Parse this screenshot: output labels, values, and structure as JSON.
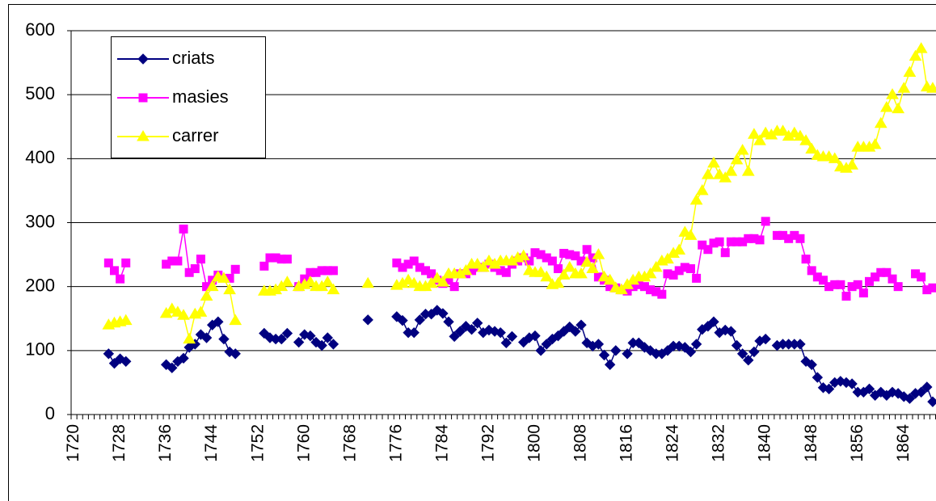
{
  "chart_data": {
    "type": "line",
    "categories": [
      "1720",
      null,
      null,
      null,
      null,
      null,
      null,
      null,
      "1728",
      null,
      null,
      null,
      null,
      null,
      null,
      null,
      "1736",
      null,
      null,
      null,
      null,
      null,
      null,
      null,
      "1744",
      null,
      null,
      null,
      null,
      null,
      null,
      null,
      "1752",
      null,
      null,
      null,
      null,
      null,
      null,
      null,
      "1760",
      null,
      null,
      null,
      null,
      null,
      null,
      null,
      "1768",
      null,
      null,
      null,
      null,
      null,
      null,
      null,
      "1776",
      null,
      null,
      null,
      null,
      null,
      null,
      null,
      "1784",
      null,
      null,
      null,
      null,
      null,
      null,
      null,
      "1792",
      null,
      null,
      null,
      null,
      null,
      null,
      null,
      "1800",
      null,
      null,
      null,
      null,
      null,
      null,
      null,
      "1808",
      null,
      null,
      null,
      null,
      null,
      null,
      null,
      "1816",
      null,
      null,
      null,
      null,
      null,
      null,
      null,
      "1824",
      null,
      null,
      null,
      null,
      null,
      null,
      null,
      "1832",
      null,
      null,
      null,
      null,
      null,
      null,
      null,
      "1840",
      null,
      null,
      null,
      null,
      null,
      null,
      null,
      "1848",
      null,
      null,
      null,
      null,
      null,
      null,
      null,
      "1856",
      null,
      null,
      null,
      null,
      null,
      null,
      null,
      "1864",
      null,
      null,
      null,
      null,
      null
    ],
    "series": [
      {
        "name": "criats",
        "color": "#000080",
        "marker": "diamond",
        "values": [
          null,
          null,
          null,
          null,
          null,
          null,
          95,
          80,
          87,
          83,
          null,
          null,
          null,
          null,
          null,
          null,
          78,
          73,
          83,
          88,
          105,
          110,
          125,
          120,
          140,
          145,
          118,
          98,
          95,
          null,
          null,
          null,
          null,
          127,
          120,
          118,
          118,
          127,
          null,
          113,
          125,
          123,
          113,
          108,
          120,
          110,
          null,
          null,
          null,
          null,
          null,
          148,
          null,
          null,
          null,
          null,
          153,
          147,
          128,
          128,
          148,
          157,
          157,
          163,
          158,
          145,
          122,
          130,
          138,
          133,
          143,
          128,
          132,
          130,
          128,
          112,
          122,
          null,
          113,
          120,
          123,
          100,
          110,
          118,
          123,
          130,
          137,
          130,
          140,
          112,
          107,
          110,
          93,
          78,
          100,
          null,
          95,
          112,
          112,
          105,
          100,
          95,
          95,
          100,
          107,
          107,
          105,
          98,
          110,
          133,
          138,
          145,
          128,
          132,
          130,
          108,
          95,
          85,
          98,
          115,
          118,
          null,
          108,
          110,
          110,
          110,
          110,
          83,
          78,
          58,
          42,
          40,
          50,
          52,
          50,
          48,
          35,
          35,
          40,
          30,
          35,
          30,
          35,
          33,
          28,
          25,
          33,
          35,
          43,
          20
        ]
      },
      {
        "name": "masies",
        "color": "#FF00FF",
        "marker": "square",
        "values": [
          null,
          null,
          null,
          null,
          null,
          null,
          237,
          225,
          212,
          237,
          null,
          null,
          null,
          null,
          null,
          null,
          235,
          240,
          240,
          290,
          222,
          228,
          243,
          200,
          210,
          218,
          null,
          213,
          227,
          null,
          null,
          null,
          null,
          232,
          245,
          245,
          243,
          243,
          null,
          200,
          212,
          222,
          222,
          225,
          225,
          225,
          null,
          null,
          null,
          null,
          null,
          null,
          null,
          null,
          null,
          null,
          237,
          230,
          235,
          240,
          230,
          225,
          220,
          210,
          205,
          210,
          200,
          220,
          220,
          225,
          230,
          230,
          235,
          230,
          225,
          222,
          235,
          240,
          245,
          240,
          253,
          250,
          245,
          240,
          228,
          252,
          250,
          248,
          240,
          258,
          245,
          215,
          210,
          200,
          198,
          195,
          193,
          200,
          203,
          200,
          195,
          192,
          188,
          220,
          218,
          225,
          230,
          228,
          213,
          265,
          258,
          268,
          270,
          253,
          270,
          270,
          270,
          275,
          275,
          273,
          302,
          null,
          280,
          280,
          275,
          280,
          275,
          243,
          225,
          215,
          210,
          200,
          203,
          203,
          185,
          200,
          203,
          190,
          208,
          215,
          222,
          222,
          212,
          200,
          null,
          null,
          220,
          215,
          195,
          198
        ]
      },
      {
        "name": "carrer",
        "color": "#FFFF00",
        "marker": "triangle",
        "values": [
          null,
          null,
          null,
          null,
          null,
          null,
          140,
          143,
          145,
          147,
          null,
          null,
          null,
          null,
          null,
          null,
          158,
          165,
          160,
          155,
          118,
          157,
          160,
          185,
          200,
          215,
          213,
          195,
          147,
          null,
          null,
          null,
          null,
          193,
          193,
          195,
          200,
          207,
          null,
          200,
          203,
          207,
          200,
          200,
          207,
          195,
          null,
          null,
          null,
          null,
          null,
          205,
          null,
          null,
          null,
          null,
          202,
          205,
          210,
          205,
          200,
          200,
          205,
          213,
          207,
          220,
          220,
          220,
          225,
          235,
          235,
          230,
          240,
          235,
          240,
          240,
          240,
          245,
          248,
          225,
          222,
          222,
          215,
          203,
          205,
          218,
          230,
          220,
          220,
          238,
          228,
          250,
          215,
          210,
          198,
          195,
          203,
          210,
          215,
          215,
          220,
          230,
          240,
          243,
          252,
          257,
          285,
          280,
          335,
          350,
          375,
          393,
          375,
          370,
          380,
          398,
          413,
          380,
          438,
          428,
          440,
          437,
          443,
          443,
          435,
          440,
          435,
          428,
          415,
          405,
          403,
          403,
          400,
          387,
          385,
          390,
          418,
          418,
          418,
          422,
          455,
          480,
          500,
          478,
          510,
          535,
          560,
          572,
          512,
          510
        ]
      }
    ],
    "ylim": [
      0,
      600
    ],
    "yticks": [
      0,
      100,
      200,
      300,
      400,
      500,
      600
    ],
    "grid": true,
    "legend": "upper-left"
  }
}
